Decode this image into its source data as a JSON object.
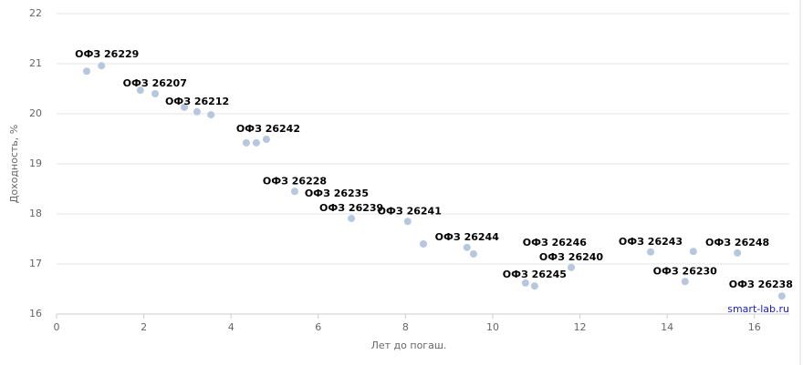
{
  "chart_data": {
    "type": "scatter",
    "xlabel": "Лет до погаш.",
    "ylabel": "Доходность, %",
    "credit": "smart-lab.ru",
    "color": "#b7c7de",
    "grid": true,
    "xlim": [
      0,
      16.8
    ],
    "ylim": [
      16,
      22
    ],
    "xticks": [
      0,
      2,
      4,
      6,
      8,
      10,
      12,
      14,
      16
    ],
    "yticks": [
      16,
      17,
      18,
      19,
      20,
      21,
      22
    ],
    "x": [
      0.69,
      1.03,
      1.92,
      2.26,
      2.93,
      3.22,
      3.54,
      4.35,
      4.58,
      4.81,
      5.46,
      6.76,
      8.05,
      8.41,
      9.41,
      9.56,
      10.75,
      10.96,
      11.8,
      13.62,
      14.41,
      14.6,
      15.61,
      16.63
    ],
    "values": [
      20.85,
      20.96,
      20.47,
      20.4,
      20.13,
      20.04,
      19.98,
      19.42,
      19.42,
      19.49,
      18.45,
      17.91,
      17.85,
      17.4,
      17.33,
      17.2,
      16.62,
      16.56,
      16.93,
      17.24,
      16.65,
      17.25,
      17.22,
      16.36
    ],
    "labels": [
      null,
      "ОФЗ 26229",
      "ОФЗ 26207",
      null,
      "ОФЗ 26212",
      null,
      null,
      null,
      "ОФЗ 26235",
      "ОФЗ 26242",
      "ОФЗ 26228",
      "ОФЗ 26239",
      "ОФЗ 26241",
      null,
      "ОФЗ 26244",
      null,
      "ОФЗ 26246",
      "ОФЗ 26245",
      "ОФЗ 26240",
      "ОФЗ 26243",
      "ОФЗ 26230",
      null,
      "ОФЗ 26248",
      "ОФЗ 26238"
    ]
  }
}
